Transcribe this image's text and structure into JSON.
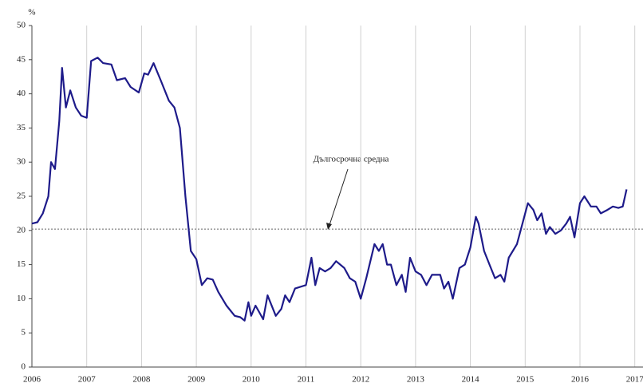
{
  "chart_data": {
    "type": "line",
    "y_label": "%",
    "annotation": "Дългосрочна средна",
    "reference_line": 20.2,
    "xlim": [
      2006,
      2017.15
    ],
    "xticks": [
      2006,
      2007,
      2008,
      2009,
      2010,
      2011,
      2012,
      2013,
      2014,
      2015,
      2016,
      2017
    ],
    "ylim": [
      0,
      50
    ],
    "yticks": [
      0,
      5,
      10,
      15,
      20,
      25,
      30,
      35,
      40,
      45,
      50
    ],
    "grid": true,
    "x": [
      2006.0,
      2006.1,
      2006.2,
      2006.3,
      2006.35,
      2006.42,
      2006.5,
      2006.55,
      2006.62,
      2006.7,
      2006.8,
      2006.9,
      2007.0,
      2007.08,
      2007.2,
      2007.3,
      2007.45,
      2007.55,
      2007.7,
      2007.8,
      2007.95,
      2008.05,
      2008.12,
      2008.22,
      2008.35,
      2008.5,
      2008.6,
      2008.7,
      2008.8,
      2008.9,
      2009.0,
      2009.1,
      2009.2,
      2009.3,
      2009.4,
      2009.55,
      2009.7,
      2009.8,
      2009.88,
      2009.95,
      2010.0,
      2010.08,
      2010.15,
      2010.22,
      2010.3,
      2010.35,
      2010.45,
      2010.55,
      2010.62,
      2010.7,
      2010.8,
      2011.0,
      2011.1,
      2011.17,
      2011.25,
      2011.35,
      2011.45,
      2011.55,
      2011.7,
      2011.8,
      2011.9,
      2012.0,
      2012.1,
      2012.25,
      2012.33,
      2012.4,
      2012.48,
      2012.55,
      2012.65,
      2012.75,
      2012.82,
      2012.9,
      2013.0,
      2013.1,
      2013.2,
      2013.3,
      2013.45,
      2013.52,
      2013.6,
      2013.68,
      2013.8,
      2013.9,
      2014.0,
      2014.1,
      2014.15,
      2014.25,
      2014.35,
      2014.45,
      2014.55,
      2014.62,
      2014.7,
      2014.85,
      2014.95,
      2015.05,
      2015.15,
      2015.22,
      2015.3,
      2015.38,
      2015.45,
      2015.55,
      2015.65,
      2015.75,
      2015.82,
      2015.9,
      2016.0,
      2016.08,
      2016.2,
      2016.3,
      2016.38,
      2016.5,
      2016.6,
      2016.7,
      2016.78,
      2016.85
    ],
    "series": [
      {
        "color": "#1e1b8a",
        "values": [
          21,
          21.2,
          22.5,
          25,
          30,
          29,
          36,
          43.8,
          38,
          40.5,
          38,
          36.8,
          36.5,
          44.8,
          45.3,
          44.5,
          44.3,
          42,
          42.3,
          41,
          40.2,
          43,
          42.8,
          44.5,
          42,
          39,
          38,
          35,
          25,
          17,
          15.8,
          12,
          13,
          12.8,
          11,
          9,
          7.5,
          7.3,
          6.8,
          9.5,
          7.5,
          9,
          8,
          7,
          10.5,
          9.5,
          7.5,
          8.5,
          10.5,
          9.5,
          11.5,
          12,
          16,
          12,
          14.5,
          14,
          14.5,
          15.5,
          14.5,
          13,
          12.5,
          10,
          13,
          18,
          17,
          18,
          15,
          15,
          12,
          13.5,
          11,
          16,
          14,
          13.5,
          12,
          13.5,
          13.5,
          11.5,
          12.5,
          10,
          14.5,
          15,
          17.5,
          22,
          21,
          17,
          15,
          13,
          13.5,
          12.5,
          16,
          18,
          21,
          24,
          23,
          21.5,
          22.5,
          19.5,
          20.5,
          19.5,
          20,
          21,
          22,
          19,
          24,
          25,
          23.5,
          23.5,
          22.5,
          23,
          23.5,
          23.3,
          23.5,
          26
        ]
      }
    ]
  }
}
